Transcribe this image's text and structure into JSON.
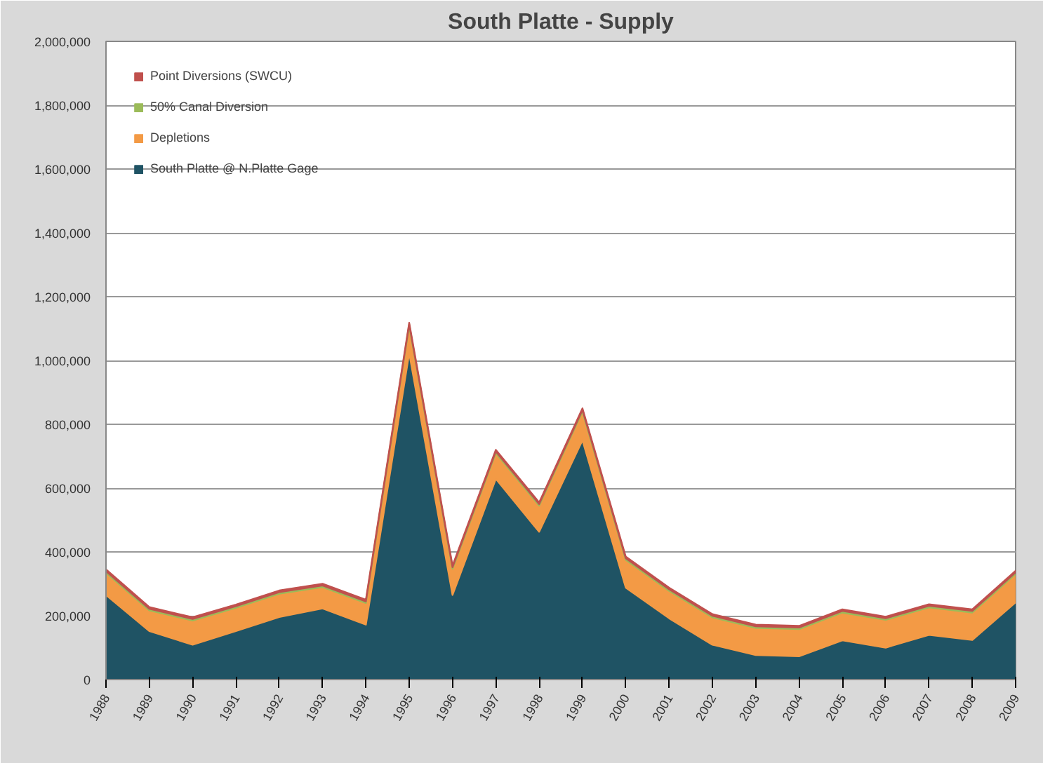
{
  "chart_data": {
    "type": "area",
    "title": "South Platte - Supply",
    "stacked": true,
    "categories": [
      "1988",
      "1989",
      "1990",
      "1991",
      "1992",
      "1993",
      "1994",
      "1995",
      "1996",
      "1997",
      "1998",
      "1999",
      "2000",
      "2001",
      "2002",
      "2003",
      "2004",
      "2005",
      "2006",
      "2007",
      "2008",
      "2009"
    ],
    "series": [
      {
        "name": "South Platte @ N.Platte Gage",
        "color": "#1f5364",
        "values": [
          265000,
          152000,
          109000,
          152000,
          196000,
          223000,
          172000,
          1023000,
          265000,
          629000,
          463000,
          750000,
          288000,
          192000,
          109000,
          77000,
          73000,
          123000,
          100000,
          140000,
          124000,
          242000
        ]
      },
      {
        "name": "Depletions",
        "color": "#f39a45",
        "values": [
          70000,
          65000,
          76000,
          73000,
          73000,
          67000,
          68000,
          85000,
          82000,
          81000,
          82000,
          90000,
          87000,
          86000,
          86000,
          85000,
          85000,
          87000,
          87000,
          86000,
          86000,
          89000
        ]
      },
      {
        "name": "50% Canal Diversion",
        "color": "#9bbb59",
        "values": [
          5000,
          5000,
          5000,
          5000,
          5000,
          5000,
          5000,
          5000,
          5000,
          5000,
          5000,
          5000,
          5000,
          5000,
          5000,
          5000,
          5000,
          5000,
          5000,
          5000,
          5000,
          5000
        ]
      },
      {
        "name": "Point Diversions (SWCU)",
        "color": "#c0504d",
        "values": [
          5000,
          5000,
          5000,
          5000,
          5000,
          5000,
          5000,
          5000,
          5000,
          5000,
          5000,
          5000,
          5000,
          5000,
          5000,
          5000,
          5000,
          5000,
          5000,
          5000,
          5000,
          5000
        ]
      }
    ],
    "ylim": [
      0,
      2000000
    ],
    "yticks": [
      {
        "value": 0,
        "label": "0"
      },
      {
        "value": 200000,
        "label": "200,000"
      },
      {
        "value": 400000,
        "label": "400,000"
      },
      {
        "value": 600000,
        "label": "600,000"
      },
      {
        "value": 800000,
        "label": "800,000"
      },
      {
        "value": 1000000,
        "label": "1,000,000"
      },
      {
        "value": 1200000,
        "label": "1,200,000"
      },
      {
        "value": 1400000,
        "label": "1,400,000"
      },
      {
        "value": 1600000,
        "label": "1,600,000"
      },
      {
        "value": 1800000,
        "label": "1,800,000"
      },
      {
        "value": 2000000,
        "label": "2,000,000"
      }
    ],
    "grid": "y",
    "legend": "top left"
  }
}
